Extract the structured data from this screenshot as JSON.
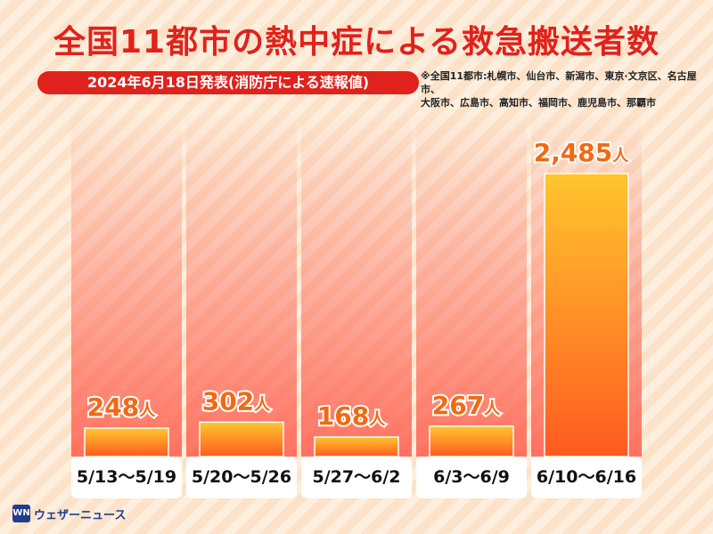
{
  "header": {
    "title": "全国11都市の熱中症による救急搬送者数",
    "subtitle": "2024年6月18日発表(消防庁による速報値)",
    "note_line1": "※全国11都市:札幌市、仙台市、新潟市、東京·文京区、名古屋市、",
    "note_line2": "大阪市、広島市、高知市、福岡市、鹿児島市、那覇市"
  },
  "chart_data": {
    "type": "bar",
    "categories": [
      "5/13〜5/19",
      "5/20〜5/26",
      "5/27〜6/2",
      "6/3〜6/9",
      "6/10〜6/16"
    ],
    "values": [
      248,
      302,
      168,
      267,
      2485
    ],
    "value_labels": [
      "248",
      "302",
      "168",
      "267",
      "2,485"
    ],
    "unit": "人",
    "ylim": [
      0,
      2485
    ],
    "colors": {
      "bar_top": "#ffc62e",
      "bar_bottom": "#ff5a1f",
      "label": "#f06a14",
      "column_bg": "#ff4a3a"
    }
  },
  "footer": {
    "logo_mark": "WN",
    "logo_text": "ウェザーニュース"
  }
}
